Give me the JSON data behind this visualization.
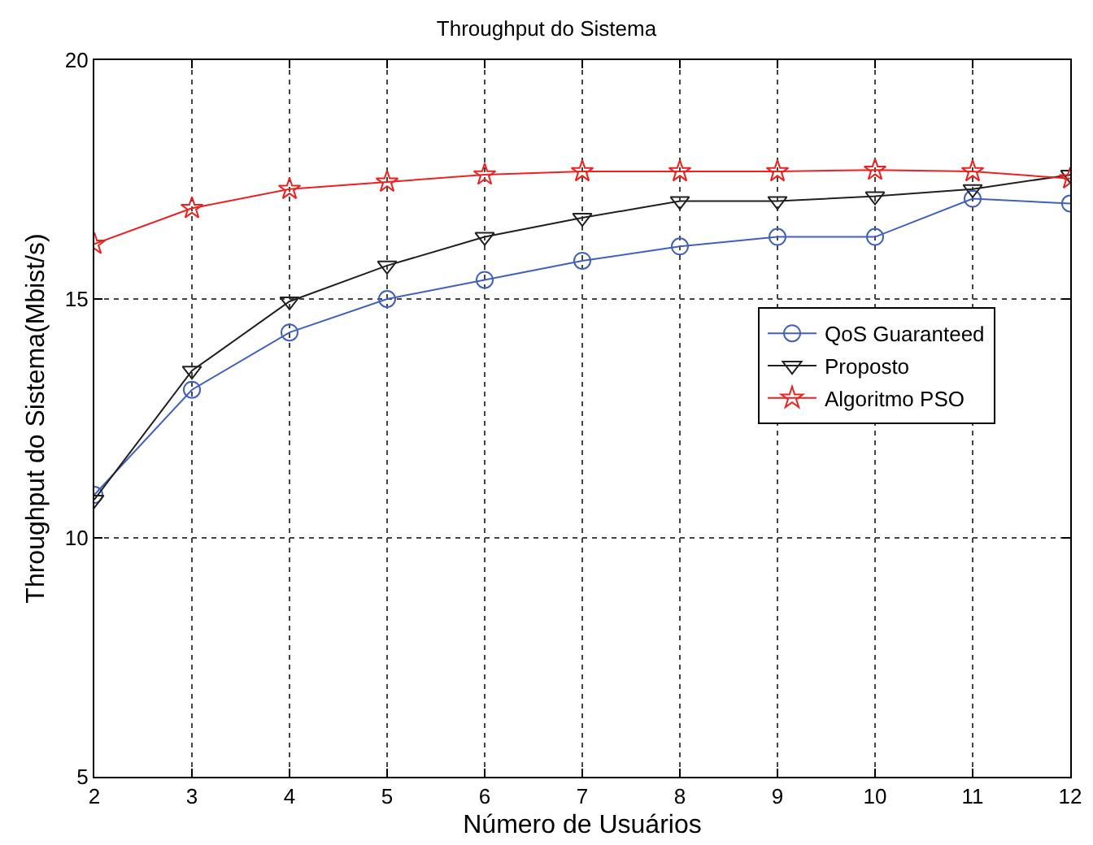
{
  "chart_data": {
    "type": "line",
    "title": "Throughput do Sistema",
    "xlabel": "Número de Usuários",
    "ylabel": "Throughput do Sistema(Mbist/s)",
    "x": [
      2,
      3,
      4,
      5,
      6,
      7,
      8,
      9,
      10,
      11,
      12
    ],
    "series": [
      {
        "name": "QoS Guaranteed",
        "color": "#4060c0",
        "marker": "circle",
        "values": [
          10.9,
          13.1,
          14.3,
          15.0,
          15.4,
          15.8,
          16.1,
          16.3,
          16.3,
          17.1,
          17.0
        ]
      },
      {
        "name": "Proposto",
        "color": "#202020",
        "marker": "triangle",
        "values": [
          10.8,
          13.5,
          14.95,
          15.7,
          16.3,
          16.7,
          17.05,
          17.05,
          17.15,
          17.3,
          17.6
        ]
      },
      {
        "name": "Algoritmo PSO",
        "color": "#ee2020",
        "marker": "star",
        "values": [
          16.15,
          16.9,
          17.3,
          17.45,
          17.6,
          17.67,
          17.67,
          17.67,
          17.7,
          17.67,
          17.52
        ]
      }
    ],
    "xlim": [
      2,
      12
    ],
    "xticks": [
      2,
      3,
      4,
      5,
      6,
      7,
      8,
      9,
      10,
      11,
      12
    ],
    "ylim": [
      5,
      20
    ],
    "yticks": [
      5,
      10,
      15,
      20
    ],
    "grid": true,
    "legend": "right",
    "line_style": "solid"
  }
}
